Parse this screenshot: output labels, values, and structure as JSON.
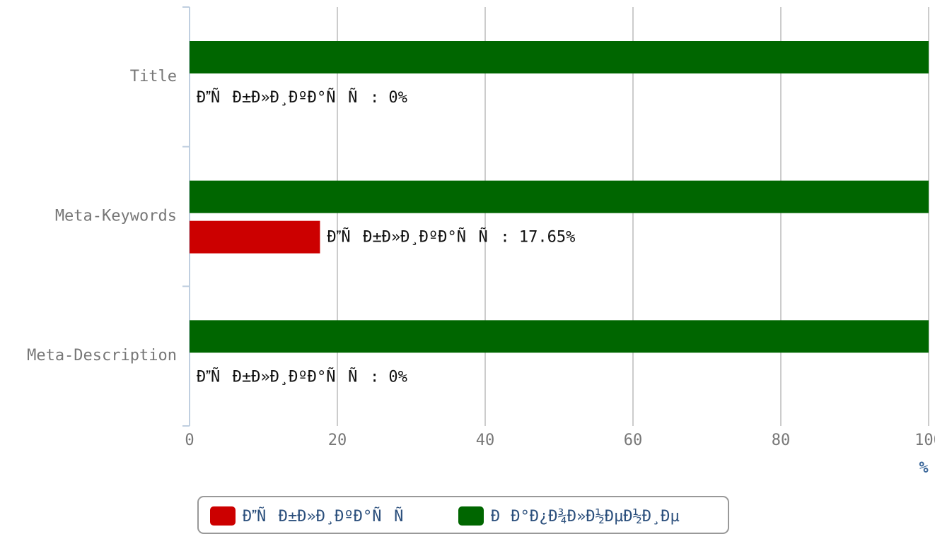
{
  "chart_data": {
    "type": "hbar",
    "categories": [
      "Title",
      "Meta-Keywords",
      "Meta-Description"
    ],
    "series": [
      {
        "name": "ÐÑÐ±Ð»Ð¸ÐºÐ°ÑÑ",
        "color": "#cc0000",
        "values": [
          0,
          17.65,
          0
        ],
        "value_labels": [
          "ÐÑÐ±Ð»Ð¸ÐºÐ°ÑÑ: 0%",
          "ÐÑÐ±Ð»Ð¸ÐºÐ°ÑÑ: 17.65%",
          "ÐÑÐ±Ð»Ð¸ÐºÐ°ÑÑ: 0%"
        ]
      },
      {
        "name": "ÐÐ°Ð¿Ð¾Ð»Ð½ÐµÐ½Ð¸Ðµ",
        "color": "#006600",
        "values": [
          100,
          100,
          100
        ]
      }
    ],
    "xlabel": "%",
    "xlim": [
      0,
      100
    ],
    "xticks": [
      0,
      20,
      40,
      60,
      80,
      100
    ],
    "grid": true
  }
}
